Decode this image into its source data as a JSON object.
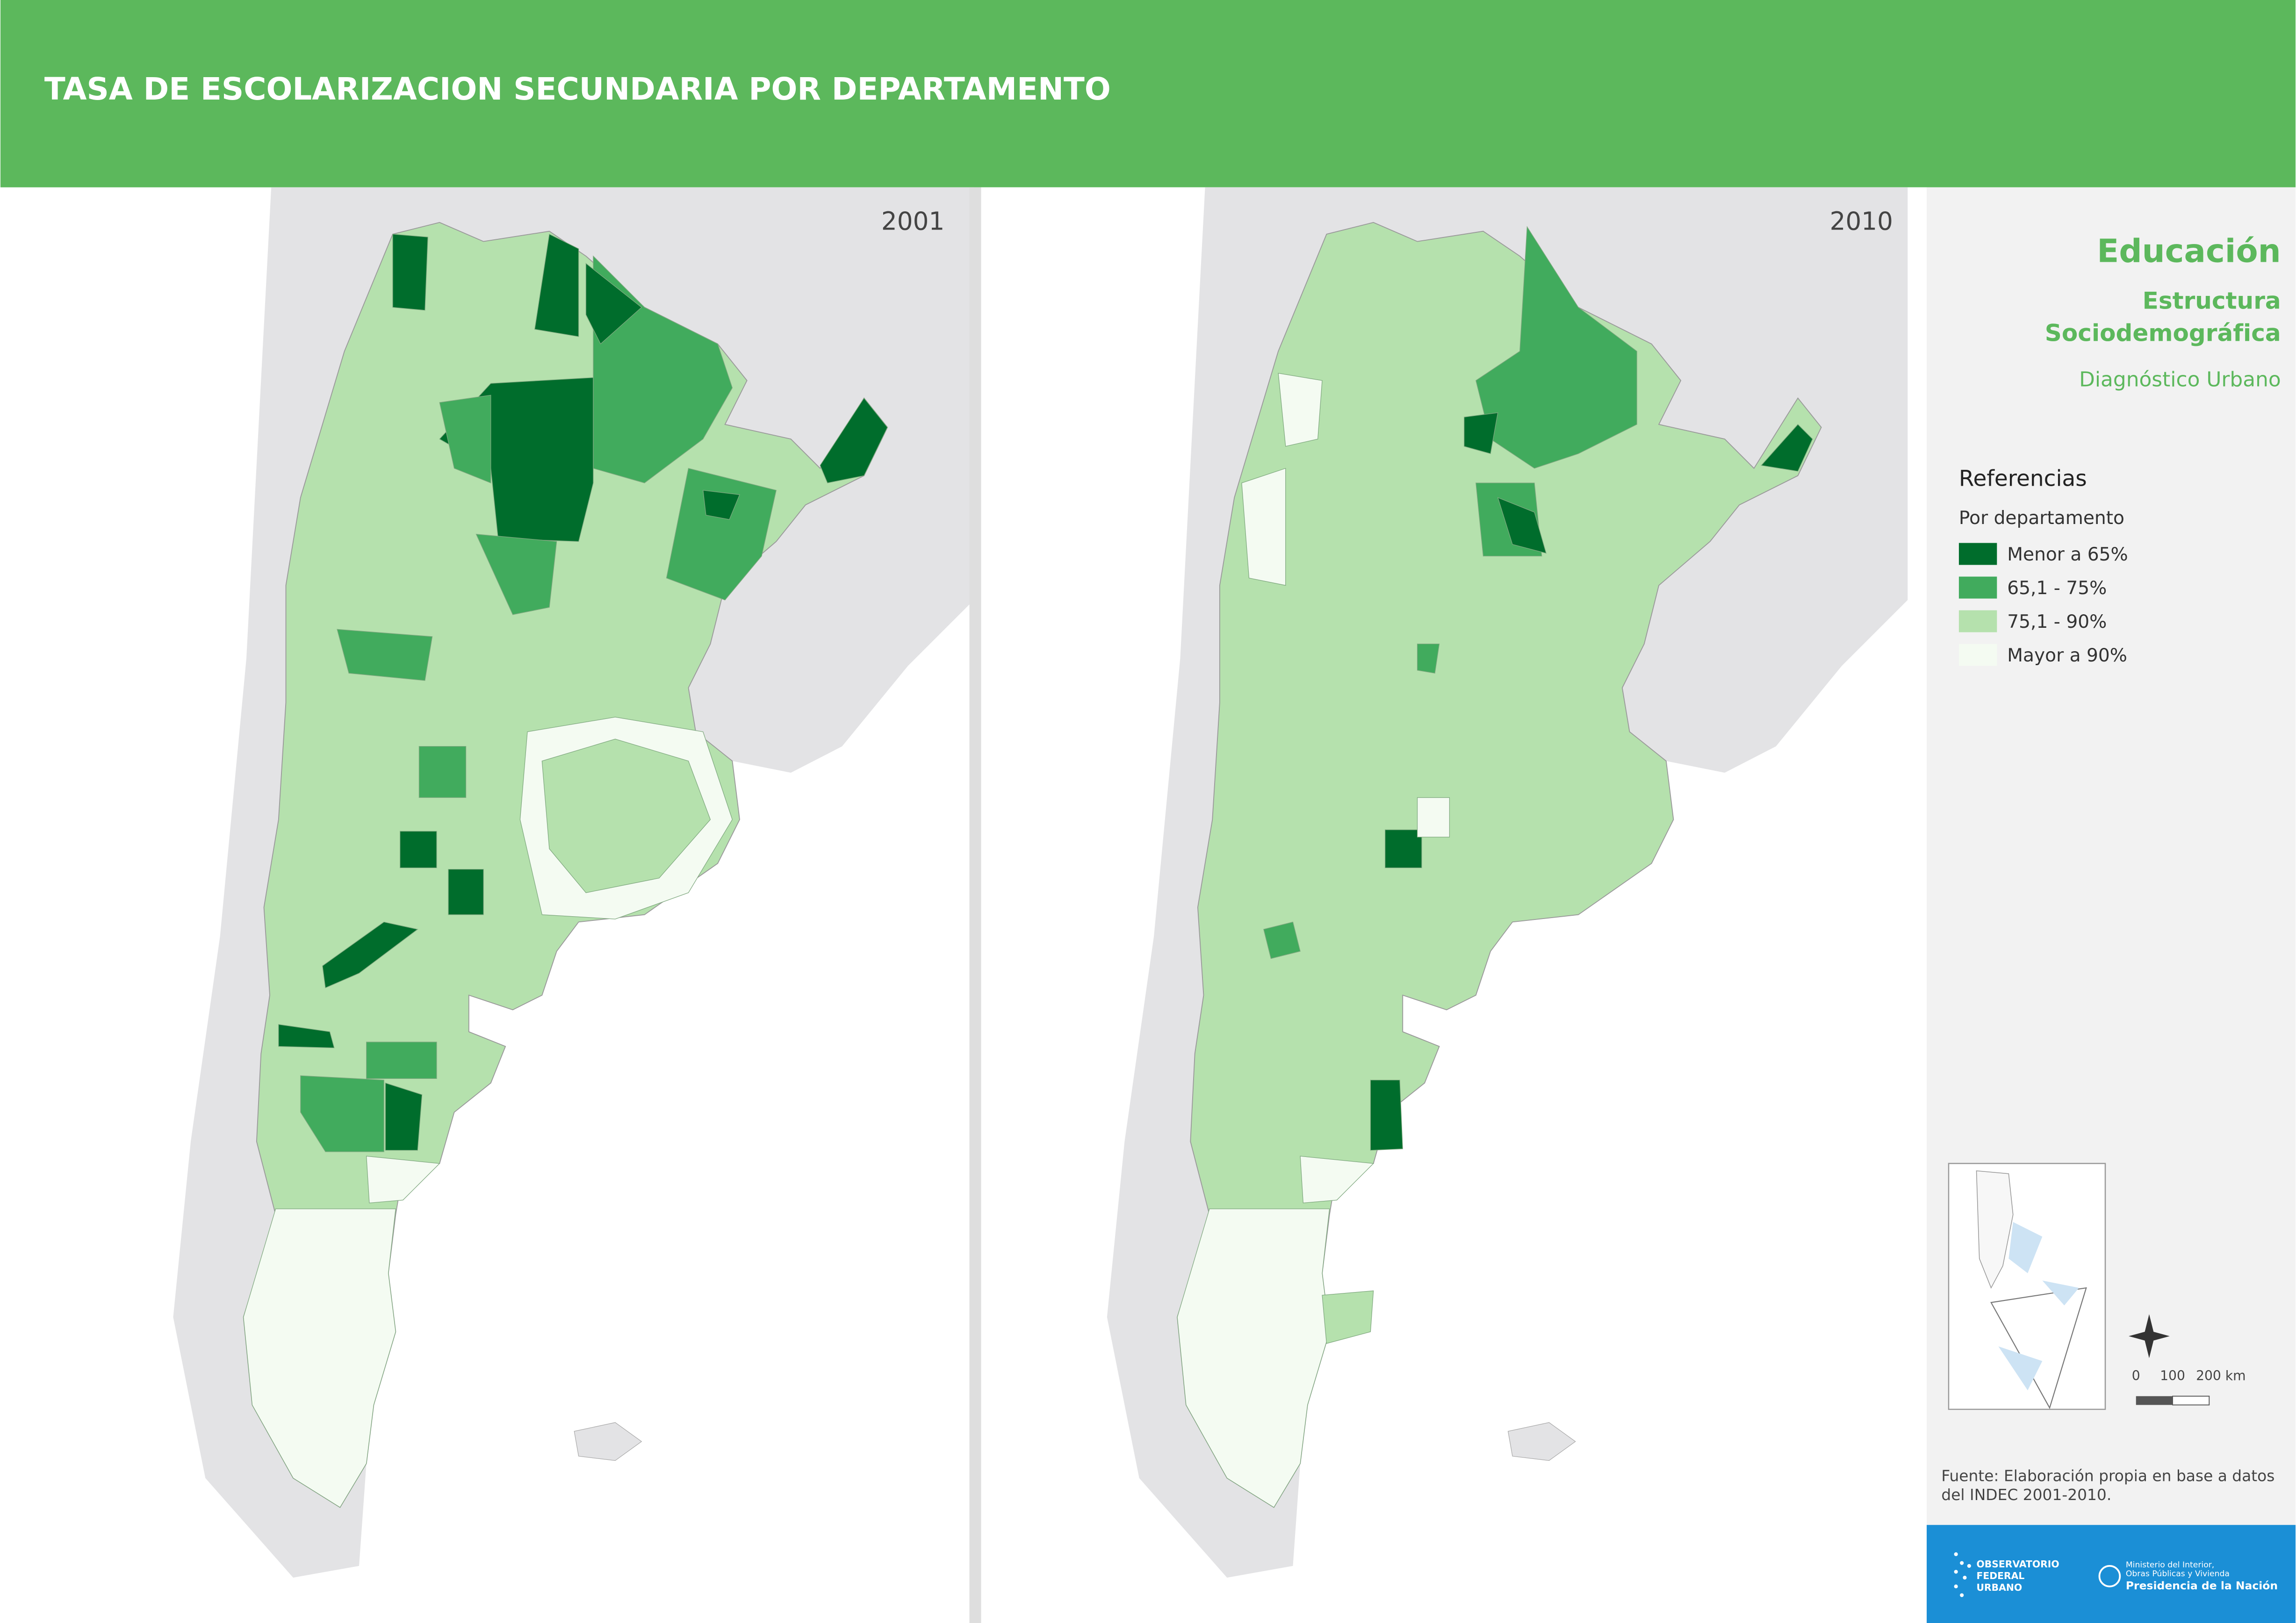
{
  "header": {
    "title": "TASA DE ESCOLARIZACION SECUNDARIA POR DEPARTAMENTO"
  },
  "maps": [
    {
      "year": "2001"
    },
    {
      "year": "2010"
    }
  ],
  "sidebar": {
    "section": "Educación",
    "subsection": [
      "Estructura",
      "Sociodemográfica"
    ],
    "subtitle": "Diagnóstico Urbano"
  },
  "legend": {
    "title": "Referencias",
    "subtitle": "Por departamento",
    "items": [
      {
        "label": "Menor a 65%",
        "color": "#006d2c"
      },
      {
        "label": "65,1 - 75%",
        "color": "#41ab5d"
      },
      {
        "label": "75,1 - 90%",
        "color": "#b5e1ad"
      },
      {
        "label": "Mayor a 90%",
        "color": "#f4fbf2"
      }
    ]
  },
  "scale": {
    "labels": [
      "0",
      "100",
      "200 km"
    ]
  },
  "source": [
    "Fuente: Elaboración propia en base a datos",
    "del INDEC  2001-2010."
  ],
  "footer": {
    "observatorio": [
      "OBSERVATORIO",
      "FEDERAL",
      "URBANO"
    ],
    "ministerio": [
      "Ministerio del Interior,",
      "Obras Públicas y Vivienda"
    ],
    "presidencia": "Presidencia de la Nación"
  }
}
